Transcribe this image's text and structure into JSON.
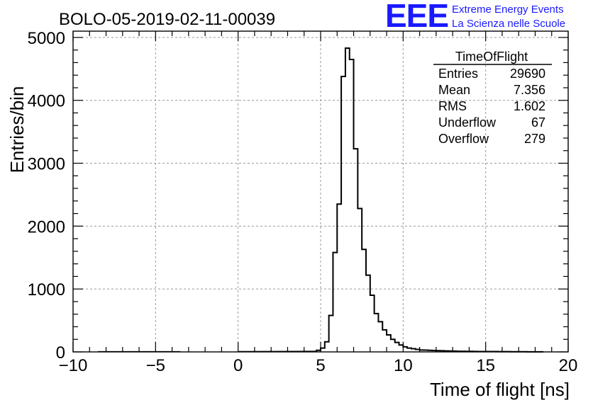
{
  "header": {
    "run_title": "BOLO-05-2019-02-11-00039",
    "logo_text": "EEE",
    "logo_line1": "Extreme Energy Events",
    "logo_line2": "La Scienza nelle Scuole",
    "logo_color": "#1a1aff"
  },
  "stats_box": {
    "title": "TimeOfFlight",
    "rows": [
      {
        "label": "Entries",
        "value": "29690"
      },
      {
        "label": "Mean",
        "value": "7.356"
      },
      {
        "label": "RMS",
        "value": "1.602"
      },
      {
        "label": "Underflow",
        "value": "67"
      },
      {
        "label": "Overflow",
        "value": "279"
      }
    ]
  },
  "chart_data": {
    "type": "bar",
    "style": "step-histogram",
    "title": "BOLO-05-2019-02-11-00039",
    "xlabel": "Time of flight [ns]",
    "ylabel": "Entries/bin",
    "xlim": [
      -10,
      20
    ],
    "ylim": [
      0,
      5100
    ],
    "grid": true,
    "xticks": [
      -10,
      -5,
      0,
      5,
      10,
      15,
      20
    ],
    "xtick_labels": [
      "−10",
      "−5",
      "0",
      "5",
      "10",
      "15",
      "20"
    ],
    "yticks": [
      0,
      1000,
      2000,
      3000,
      4000,
      5000
    ],
    "ytick_labels": [
      "0",
      "1000",
      "2000",
      "3000",
      "4000",
      "5000"
    ],
    "bin_width": 0.25,
    "bin_start": 4.75,
    "values": [
      25,
      60,
      160,
      580,
      1580,
      2350,
      4380,
      4830,
      4650,
      3230,
      2280,
      1630,
      1220,
      900,
      610,
      480,
      350,
      270,
      200,
      150,
      110,
      80,
      60,
      50,
      40,
      30,
      28,
      25,
      22,
      20,
      18,
      15,
      14,
      12,
      10,
      10,
      9,
      8,
      7,
      6,
      6,
      5,
      5,
      5,
      4,
      4,
      4,
      3,
      3,
      3,
      3,
      2,
      2,
      2,
      2
    ],
    "line_color": "#000000"
  }
}
